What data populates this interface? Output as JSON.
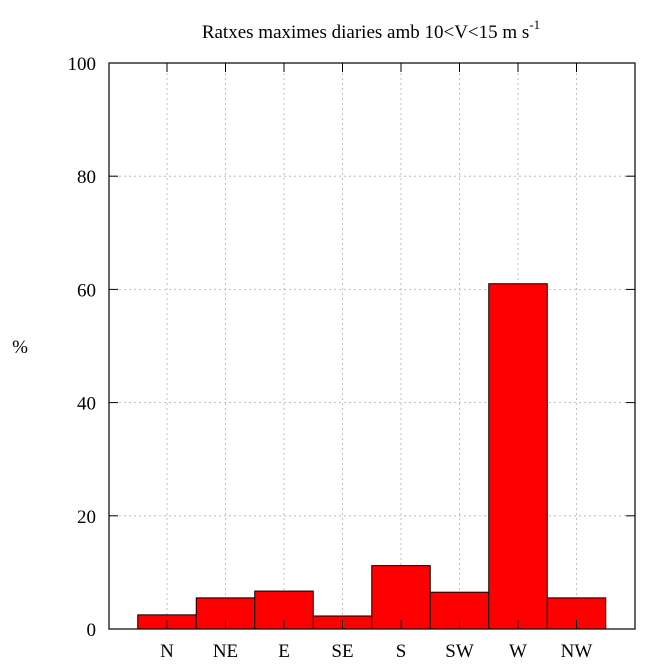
{
  "chart_data": {
    "type": "bar",
    "title": "Ratxes maximes diaries amb 10<V<15 m s",
    "title_superscript": "-1",
    "xlabel": "",
    "ylabel": "%",
    "categories": [
      "N",
      "NE",
      "E",
      "SE",
      "S",
      "SW",
      "W",
      "NW"
    ],
    "values": [
      2.5,
      5.5,
      6.7,
      2.3,
      11.2,
      6.5,
      61.0,
      5.5
    ],
    "ylim": [
      0,
      100
    ],
    "yticks": [
      0,
      20,
      40,
      60,
      80,
      100
    ],
    "ytick_labels": [
      "0",
      "20",
      "40",
      "60",
      "80",
      "100"
    ],
    "grid": true,
    "bar_color": "#ff0000"
  }
}
